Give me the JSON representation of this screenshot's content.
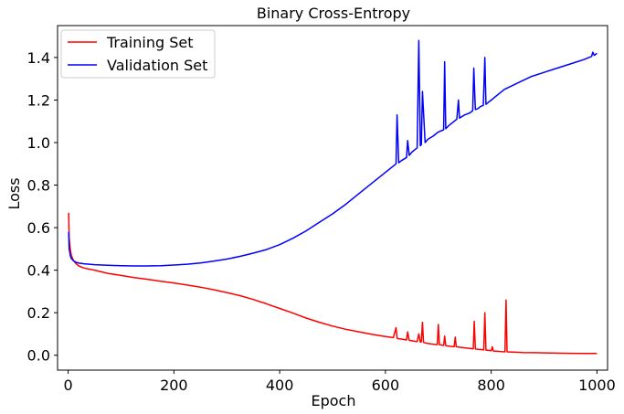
{
  "chart_data": {
    "type": "line",
    "title": "Binary Cross-Entropy",
    "xlabel": "Epoch",
    "ylabel": "Loss",
    "xlim": [
      -20,
      1020
    ],
    "ylim": [
      -0.07,
      1.55
    ],
    "xticks": [
      0,
      200,
      400,
      600,
      800,
      1000
    ],
    "yticks": [
      0.0,
      0.2,
      0.4,
      0.6,
      0.8,
      1.0,
      1.2,
      1.4
    ],
    "xtick_labels": [
      "0",
      "200",
      "400",
      "600",
      "800",
      "1000"
    ],
    "ytick_labels": [
      "0.0",
      "0.2",
      "0.4",
      "0.6",
      "0.8",
      "1.0",
      "1.2",
      "1.4"
    ],
    "grid": false,
    "legend": "top-left",
    "series": [
      {
        "name": "Training Set",
        "color": "#ff0000",
        "x": [
          1,
          2,
          4,
          6,
          10,
          15,
          20,
          30,
          50,
          75,
          100,
          125,
          150,
          175,
          200,
          225,
          250,
          275,
          300,
          325,
          350,
          375,
          400,
          425,
          450,
          475,
          500,
          525,
          550,
          575,
          600,
          615,
          620,
          622,
          625,
          630,
          640,
          642,
          645,
          650,
          655,
          660,
          663,
          666,
          668,
          670,
          672,
          675,
          680,
          690,
          698,
          700,
          702,
          705,
          710,
          712,
          714,
          720,
          730,
          732,
          734,
          740,
          750,
          760,
          766,
          768,
          770,
          775,
          780,
          786,
          788,
          790,
          795,
          800,
          802,
          804,
          810,
          820,
          826,
          828,
          830,
          840,
          860,
          880,
          900,
          925,
          950,
          975,
          1000
        ],
        "y": [
          0.67,
          0.55,
          0.5,
          0.47,
          0.445,
          0.43,
          0.42,
          0.41,
          0.4,
          0.385,
          0.375,
          0.365,
          0.357,
          0.348,
          0.34,
          0.33,
          0.32,
          0.308,
          0.295,
          0.28,
          0.262,
          0.242,
          0.22,
          0.198,
          0.175,
          0.155,
          0.137,
          0.122,
          0.11,
          0.098,
          0.088,
          0.083,
          0.13,
          0.08,
          0.078,
          0.076,
          0.072,
          0.11,
          0.07,
          0.068,
          0.066,
          0.064,
          0.1,
          0.062,
          0.063,
          0.155,
          0.06,
          0.058,
          0.056,
          0.052,
          0.05,
          0.145,
          0.05,
          0.048,
          0.046,
          0.09,
          0.045,
          0.043,
          0.04,
          0.085,
          0.04,
          0.038,
          0.035,
          0.032,
          0.03,
          0.16,
          0.03,
          0.028,
          0.027,
          0.025,
          0.2,
          0.024,
          0.023,
          0.021,
          0.04,
          0.02,
          0.019,
          0.017,
          0.016,
          0.26,
          0.016,
          0.015,
          0.013,
          0.012,
          0.011,
          0.01,
          0.009,
          0.008,
          0.008
        ]
      },
      {
        "name": "Validation Set",
        "color": "#0000ff",
        "x": [
          1,
          2,
          4,
          6,
          10,
          15,
          20,
          30,
          50,
          75,
          100,
          125,
          150,
          175,
          200,
          225,
          250,
          275,
          300,
          325,
          350,
          375,
          400,
          425,
          450,
          475,
          500,
          525,
          550,
          575,
          600,
          610,
          620,
          622,
          625,
          630,
          640,
          642,
          645,
          650,
          655,
          660,
          663,
          666,
          668,
          670,
          675,
          680,
          690,
          700,
          710,
          712,
          714,
          720,
          730,
          735,
          738,
          740,
          750,
          760,
          765,
          767,
          770,
          775,
          780,
          785,
          788,
          790,
          795,
          800,
          810,
          825,
          850,
          875,
          900,
          925,
          950,
          975,
          990,
          992,
          995,
          1000
        ],
        "y": [
          0.58,
          0.5,
          0.47,
          0.455,
          0.445,
          0.437,
          0.433,
          0.43,
          0.426,
          0.423,
          0.421,
          0.42,
          0.42,
          0.421,
          0.424,
          0.428,
          0.434,
          0.442,
          0.452,
          0.465,
          0.48,
          0.497,
          0.52,
          0.55,
          0.585,
          0.625,
          0.665,
          0.71,
          0.76,
          0.81,
          0.86,
          0.88,
          0.9,
          1.13,
          0.905,
          0.915,
          0.93,
          1.01,
          0.94,
          0.955,
          0.965,
          0.975,
          1.48,
          0.985,
          0.99,
          1.24,
          1.0,
          1.015,
          1.03,
          1.05,
          1.06,
          1.38,
          1.065,
          1.08,
          1.1,
          1.11,
          1.2,
          1.115,
          1.13,
          1.14,
          1.15,
          1.35,
          1.155,
          1.16,
          1.17,
          1.175,
          1.4,
          1.18,
          1.19,
          1.2,
          1.22,
          1.25,
          1.28,
          1.31,
          1.33,
          1.35,
          1.37,
          1.39,
          1.405,
          1.425,
          1.41,
          1.42
        ]
      }
    ]
  }
}
